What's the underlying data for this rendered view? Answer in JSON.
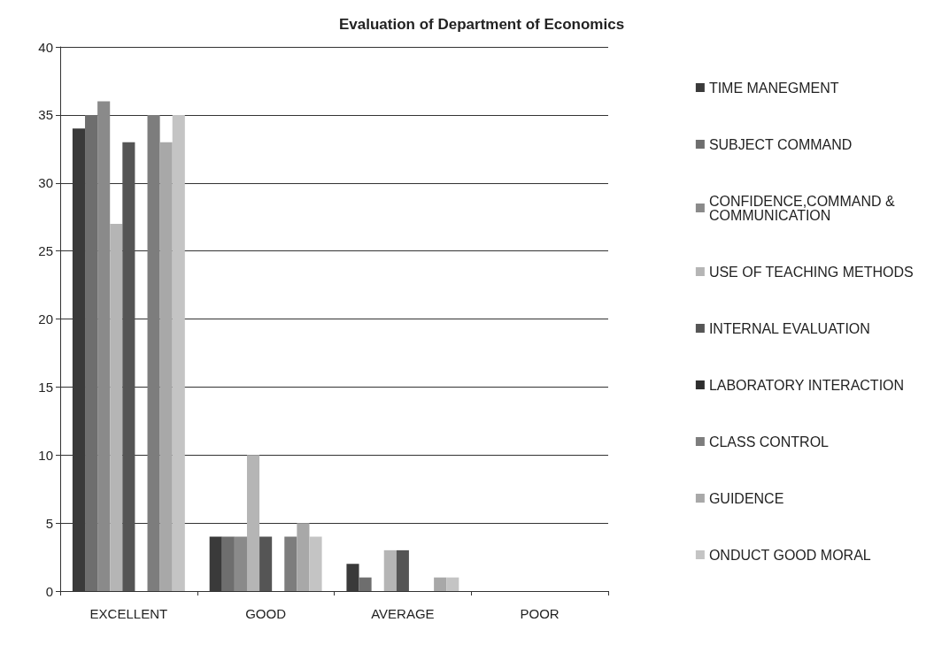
{
  "chart_data": {
    "type": "bar",
    "title": "Evaluation of Department of Economics",
    "categories": [
      "EXCELLENT",
      "GOOD",
      "AVERAGE",
      "POOR"
    ],
    "series": [
      {
        "name": "TIME MANEGMENT",
        "color": "#3a3a3a",
        "values": [
          34,
          4,
          2,
          0
        ]
      },
      {
        "name": "SUBJECT COMMAND",
        "color": "#6e6e6e",
        "values": [
          35,
          4,
          1,
          0
        ]
      },
      {
        "name": "CONFIDENCE,COMMAND & COMMUNICATION",
        "color": "#8a8a8a",
        "values": [
          36,
          4,
          0,
          0
        ]
      },
      {
        "name": "USE OF TEACHING METHODS",
        "color": "#b5b5b5",
        "values": [
          27,
          10,
          3,
          0
        ]
      },
      {
        "name": "INTERNAL EVALUATION",
        "color": "#555555",
        "values": [
          33,
          4,
          3,
          0
        ]
      },
      {
        "name": "LABORATORY INTERACTION",
        "color": "#2e2e2e",
        "values": [
          0,
          0,
          0,
          0
        ]
      },
      {
        "name": "CLASS CONTROL",
        "color": "#7d7d7d",
        "values": [
          35,
          4,
          0,
          0
        ]
      },
      {
        "name": "GUIDENCE",
        "color": "#a8a8a8",
        "values": [
          33,
          5,
          1,
          0
        ]
      },
      {
        "name": "ONDUCT GOOD MORAL",
        "color": "#c4c4c4",
        "values": [
          35,
          4,
          1,
          0
        ]
      }
    ],
    "ylim": [
      0,
      40
    ],
    "yticks": [
      0,
      5,
      10,
      15,
      20,
      25,
      30,
      35,
      40
    ],
    "grid": "y",
    "legend": "right"
  }
}
